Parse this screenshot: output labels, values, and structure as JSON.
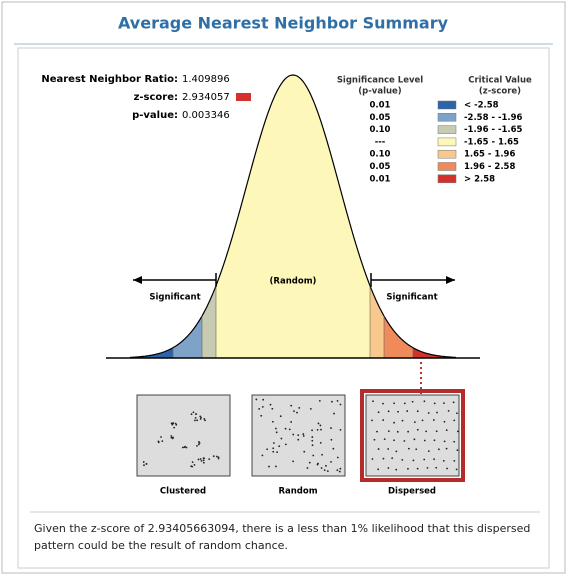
{
  "header": {
    "title": "Average Nearest Neighbor Summary"
  },
  "stats": [
    {
      "label": "Nearest Neighbor Ratio:",
      "value": "1.409896"
    },
    {
      "label": "z-score:",
      "value": "2.934057"
    },
    {
      "label": "p-value:",
      "value": "0.003346"
    }
  ],
  "legend": {
    "p_header": "Significance Level",
    "p_sub": "(p-value)",
    "z_header": "Critical Value",
    "z_sub": "(z-score)",
    "rows": [
      {
        "p": "0.01",
        "z": "< -2.58",
        "color": "#2c64a8"
      },
      {
        "p": "0.05",
        "z": "-2.58 - -1.96",
        "color": "#7ea2c8"
      },
      {
        "p": "0.10",
        "z": "-1.96 - -1.65",
        "color": "#c7cbb2"
      },
      {
        "p": "---",
        "z": "-1.65 - 1.65",
        "color": "#fdf7b9"
      },
      {
        "p": "0.10",
        "z": "1.65 - 1.96",
        "color": "#f7c98d"
      },
      {
        "p": "0.05",
        "z": "1.96 - 2.58",
        "color": "#ef8a5a"
      },
      {
        "p": "0.01",
        "z": "> 2.58",
        "color": "#d2322b"
      }
    ]
  },
  "curve_labels": {
    "left": "Significant",
    "center": "(Random)",
    "right": "Significant"
  },
  "patterns": [
    "Clustered",
    "Random",
    "Dispersed"
  ],
  "summary": "Given the z-score of 2.93405663094, there is a less than 1% likelihood that this dispersed pattern could be the result of random chance."
}
